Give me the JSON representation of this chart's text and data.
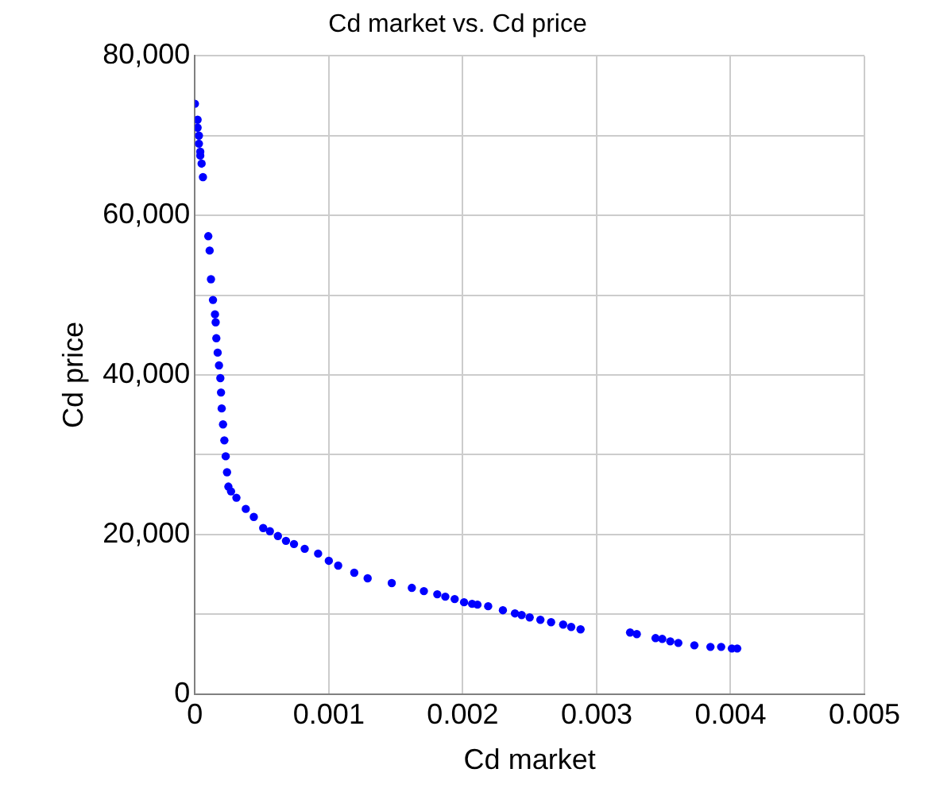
{
  "chart_data": {
    "type": "scatter",
    "title": "Cd market vs. Cd price",
    "xlabel": "Cd market",
    "ylabel": "Cd price",
    "xlim": [
      0,
      0.005
    ],
    "xticks": [
      0,
      0.001,
      0.002,
      0.003,
      0.004,
      0.005
    ],
    "ylim": [
      0,
      80000
    ],
    "yticks": [
      0,
      {
        "value": 10000,
        "label": null
      },
      {
        "value": 20000,
        "label": "20,000"
      },
      {
        "value": 30000,
        "label": null
      },
      {
        "value": 40000,
        "label": "40,000"
      },
      {
        "value": 50000,
        "label": null
      },
      {
        "value": 60000,
        "label": "60,000"
      },
      {
        "value": 70000,
        "label": null
      },
      {
        "value": 80000,
        "label": "80,000"
      }
    ],
    "grid": true,
    "legend": false,
    "marker": "circle",
    "series": [
      {
        "color": "#0000ff",
        "x": [
          0.0,
          2e-05,
          2e-05,
          3e-05,
          3e-05,
          4e-05,
          4e-05,
          5e-05,
          6e-05,
          0.0001,
          0.00011,
          0.00012,
          0.000135,
          0.00015,
          0.000155,
          0.00016,
          0.00017,
          0.00018,
          0.00019,
          0.000195,
          0.0002,
          0.00021,
          0.00022,
          0.00023,
          0.00024,
          0.00025,
          0.00027,
          0.00031,
          0.00038,
          0.00044,
          0.00051,
          0.00056,
          0.00062,
          0.00068,
          0.00074,
          0.00082,
          0.00092,
          0.001,
          0.00107,
          0.00119,
          0.00129,
          0.00147,
          0.00162,
          0.00171,
          0.00181,
          0.00187,
          0.00194,
          0.00201,
          0.00207,
          0.00211,
          0.00219,
          0.0023,
          0.00239,
          0.00244,
          0.0025,
          0.00258,
          0.00266,
          0.00275,
          0.00281,
          0.00288,
          0.00325,
          0.0033,
          0.00344,
          0.00349,
          0.00355,
          0.00361,
          0.00373,
          0.00385,
          0.00393,
          0.00401,
          0.00405
        ],
        "values": [
          74000,
          72000,
          71000,
          70000,
          69000,
          68000,
          67500,
          66500,
          64800,
          57400,
          55600,
          52000,
          49400,
          47600,
          46600,
          44600,
          42800,
          41200,
          39600,
          37800,
          35800,
          33800,
          31800,
          29800,
          27800,
          26000,
          25400,
          24600,
          23200,
          22200,
          20800,
          20400,
          19800,
          19200,
          18800,
          18200,
          17600,
          16700,
          16100,
          15200,
          14500,
          13900,
          13300,
          12900,
          12500,
          12200,
          11900,
          11500,
          11300,
          11200,
          11000,
          10500,
          10100,
          9900,
          9600,
          9300,
          9000,
          8700,
          8400,
          8100,
          7700,
          7500,
          7000,
          6900,
          6600,
          6400,
          6100,
          5900,
          5900,
          5700,
          5700
        ]
      }
    ]
  }
}
